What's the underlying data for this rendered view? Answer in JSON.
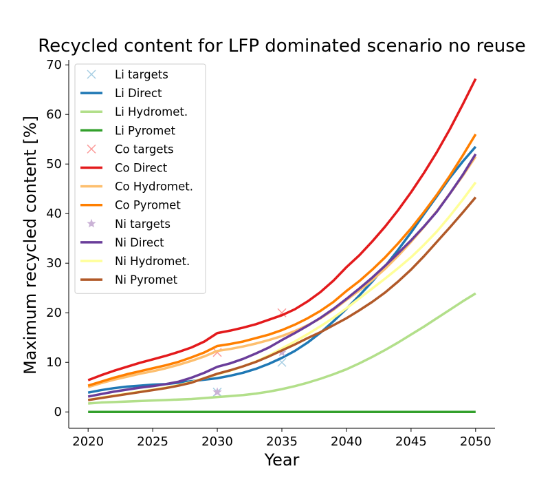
{
  "chart_data": {
    "type": "line",
    "title": "Recycled content for LFP dominated scenario no reuse",
    "xlabel": "Year",
    "ylabel": "Maximum recycled content [%]",
    "xlim": [
      2018.5,
      2051.5
    ],
    "ylim": [
      -3.3,
      71
    ],
    "xticks": [
      2020,
      2025,
      2030,
      2035,
      2040,
      2045,
      2050
    ],
    "yticks": [
      0,
      10,
      20,
      30,
      40,
      50,
      60,
      70
    ],
    "grid": false,
    "legend_position": "upper-left",
    "x": [
      2020,
      2021,
      2022,
      2023,
      2024,
      2025,
      2026,
      2027,
      2028,
      2029,
      2030,
      2031,
      2032,
      2033,
      2034,
      2035,
      2036,
      2037,
      2038,
      2039,
      2040,
      2041,
      2042,
      2043,
      2044,
      2045,
      2046,
      2047,
      2048,
      2049,
      2050
    ],
    "series": [
      {
        "name": "Li targets",
        "kind": "marker",
        "marker": "x",
        "color": "#a6cee3",
        "x": [
          2030,
          2035
        ],
        "values": [
          4,
          10
        ]
      },
      {
        "name": "Li Direct",
        "kind": "line",
        "color": "#1f78b4",
        "values": [
          3.9,
          4.4,
          4.8,
          5.1,
          5.3,
          5.5,
          5.6,
          5.9,
          6.2,
          6.5,
          6.8,
          7.3,
          7.9,
          8.7,
          9.7,
          10.9,
          12.3,
          14.0,
          16.0,
          18.3,
          20.8,
          23.5,
          26.3,
          29.4,
          32.7,
          36.2,
          39.9,
          43.5,
          47.2,
          50.5,
          53.5
        ]
      },
      {
        "name": "Li Hydromet.",
        "kind": "line",
        "color": "#b2df8a",
        "values": [
          1.7,
          1.9,
          2.0,
          2.1,
          2.2,
          2.3,
          2.4,
          2.5,
          2.6,
          2.8,
          3.0,
          3.2,
          3.4,
          3.7,
          4.1,
          4.6,
          5.2,
          5.9,
          6.7,
          7.6,
          8.6,
          9.8,
          11.1,
          12.5,
          14.0,
          15.6,
          17.2,
          18.9,
          20.6,
          22.3,
          23.9
        ]
      },
      {
        "name": "Li Pyromet",
        "kind": "line",
        "color": "#33a02c",
        "values": [
          0,
          0,
          0,
          0,
          0,
          0,
          0,
          0,
          0,
          0,
          0,
          0,
          0,
          0,
          0,
          0,
          0,
          0,
          0,
          0,
          0,
          0,
          0,
          0,
          0,
          0,
          0,
          0,
          0,
          0,
          0
        ]
      },
      {
        "name": "Co targets",
        "kind": "marker",
        "marker": "x",
        "color": "#fb9a99",
        "x": [
          2030,
          2035
        ],
        "values": [
          12,
          20
        ]
      },
      {
        "name": "Co Direct",
        "kind": "line",
        "color": "#e31a1c",
        "values": [
          6.4,
          7.4,
          8.3,
          9.1,
          9.9,
          10.6,
          11.3,
          12.1,
          13.0,
          14.2,
          15.9,
          16.4,
          17.0,
          17.7,
          18.6,
          19.5,
          20.7,
          22.3,
          24.2,
          26.5,
          29.2,
          31.6,
          34.4,
          37.4,
          40.7,
          44.3,
          48.2,
          52.4,
          57.0,
          62.0,
          67.2
        ]
      },
      {
        "name": "Co Hydromet.",
        "kind": "line",
        "color": "#fdbf6f",
        "values": [
          5.0,
          5.8,
          6.5,
          7.1,
          7.7,
          8.2,
          8.8,
          9.5,
          10.3,
          11.2,
          12.3,
          12.7,
          13.2,
          13.8,
          14.5,
          15.3,
          16.3,
          17.5,
          18.9,
          20.6,
          22.6,
          24.5,
          26.6,
          28.9,
          31.5,
          34.3,
          37.3,
          40.5,
          44.0,
          47.6,
          51.5
        ]
      },
      {
        "name": "Co Pyromet",
        "kind": "line",
        "color": "#ff7f00",
        "values": [
          5.3,
          6.1,
          6.9,
          7.6,
          8.2,
          8.8,
          9.4,
          10.1,
          11.0,
          12.0,
          13.3,
          13.7,
          14.2,
          14.9,
          15.6,
          16.5,
          17.6,
          18.9,
          20.4,
          22.2,
          24.4,
          26.4,
          28.7,
          31.2,
          34.0,
          37.0,
          40.3,
          43.8,
          47.6,
          51.7,
          56.0
        ]
      },
      {
        "name": "Ni targets",
        "kind": "marker",
        "marker": "star",
        "color": "#cab2d6",
        "x": [
          2030,
          2035
        ],
        "values": [
          4,
          12
        ]
      },
      {
        "name": "Ni Direct",
        "kind": "line",
        "color": "#6a3d9a",
        "values": [
          3.1,
          3.6,
          4.1,
          4.5,
          4.9,
          5.2,
          5.6,
          6.1,
          6.9,
          7.9,
          9.1,
          9.8,
          10.7,
          11.8,
          13.0,
          14.5,
          15.9,
          17.4,
          19.0,
          20.8,
          22.8,
          24.9,
          27.1,
          29.5,
          32.0,
          34.6,
          37.4,
          40.4,
          44.0,
          47.8,
          52.0
        ]
      },
      {
        "name": "Ni Hydromet.",
        "kind": "line",
        "color": "#ffff99",
        "values": [
          2.4,
          2.9,
          3.3,
          3.7,
          4.1,
          4.5,
          4.9,
          5.4,
          6.0,
          6.8,
          7.6,
          8.3,
          9.2,
          10.2,
          11.4,
          12.8,
          14.2,
          15.7,
          17.3,
          19.0,
          20.9,
          22.9,
          24.9,
          26.9,
          29.0,
          31.2,
          33.7,
          36.4,
          39.5,
          42.8,
          46.3
        ]
      },
      {
        "name": "Ni Pyromet",
        "kind": "line",
        "color": "#b15928",
        "values": [
          2.4,
          2.8,
          3.2,
          3.6,
          4.0,
          4.4,
          4.8,
          5.3,
          5.9,
          6.8,
          7.7,
          8.4,
          9.2,
          10.1,
          11.2,
          12.4,
          13.6,
          14.9,
          16.1,
          17.5,
          18.9,
          20.5,
          22.2,
          24.1,
          26.3,
          28.7,
          31.4,
          34.3,
          37.2,
          40.2,
          43.3
        ]
      }
    ]
  }
}
